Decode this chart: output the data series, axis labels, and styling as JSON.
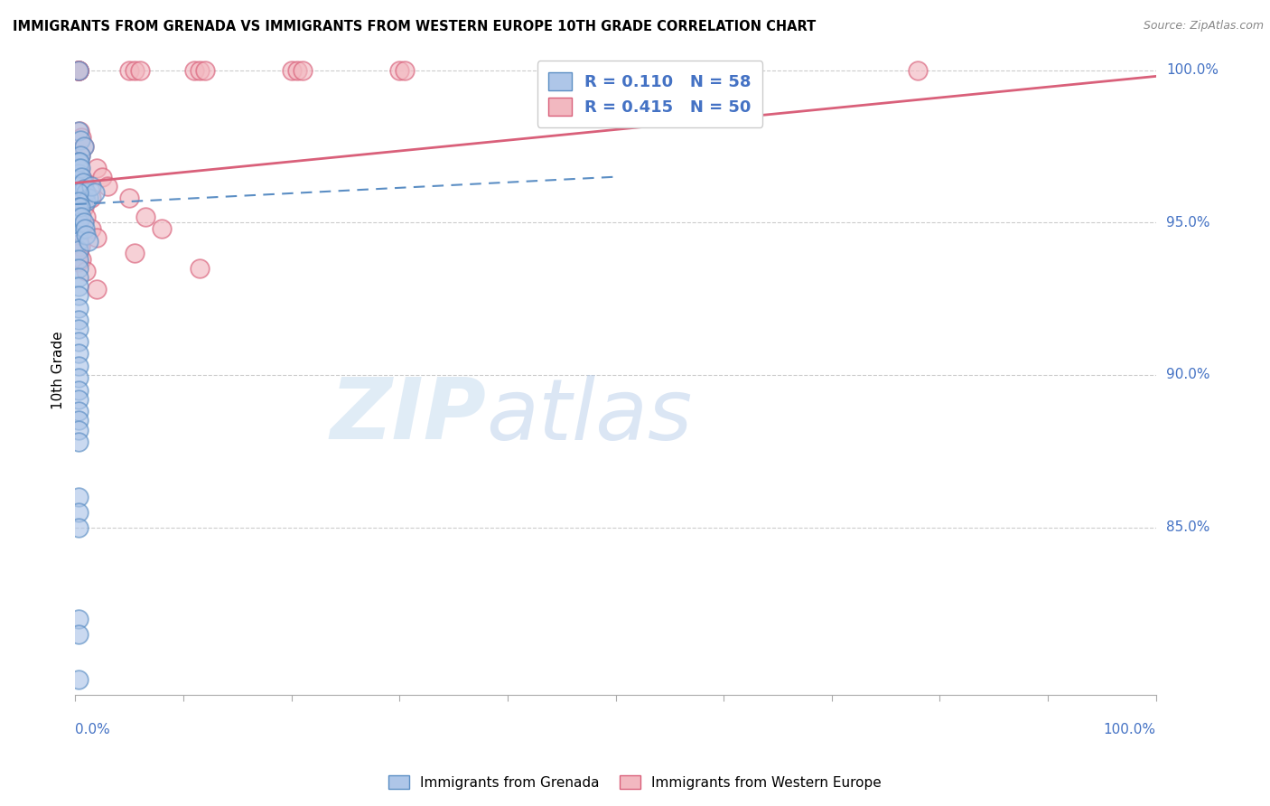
{
  "title": "IMMIGRANTS FROM GRENADA VS IMMIGRANTS FROM WESTERN EUROPE 10TH GRADE CORRELATION CHART",
  "source": "Source: ZipAtlas.com",
  "ylabel": "10th Grade",
  "yaxis_labels": [
    "100.0%",
    "95.0%",
    "90.0%",
    "85.0%"
  ],
  "yaxis_values": [
    1.0,
    0.95,
    0.9,
    0.85
  ],
  "xmin": 0.0,
  "xmax": 1.0,
  "ymin": 0.795,
  "ymax": 1.008,
  "legend_blue_r": "0.110",
  "legend_blue_n": "58",
  "legend_pink_r": "0.415",
  "legend_pink_n": "50",
  "blue_color": "#aec6e8",
  "blue_edge_color": "#5b8ec4",
  "pink_color": "#f2b8c0",
  "pink_edge_color": "#d9607a",
  "legend_label_blue": "Immigrants from Grenada",
  "legend_label_pink": "Immigrants from Western Europe",
  "blue_scatter": [
    [
      0.003,
      1.0
    ],
    [
      0.003,
      0.98
    ],
    [
      0.005,
      0.977
    ],
    [
      0.008,
      0.975
    ],
    [
      0.005,
      0.972
    ],
    [
      0.003,
      0.97
    ],
    [
      0.003,
      0.968
    ],
    [
      0.003,
      0.966
    ],
    [
      0.003,
      0.964
    ],
    [
      0.003,
      0.962
    ],
    [
      0.004,
      0.97
    ],
    [
      0.005,
      0.968
    ],
    [
      0.006,
      0.965
    ],
    [
      0.007,
      0.963
    ],
    [
      0.008,
      0.961
    ],
    [
      0.01,
      0.96
    ],
    [
      0.01,
      0.957
    ],
    [
      0.012,
      0.958
    ],
    [
      0.015,
      0.962
    ],
    [
      0.018,
      0.96
    ],
    [
      0.003,
      0.96
    ],
    [
      0.003,
      0.957
    ],
    [
      0.003,
      0.955
    ],
    [
      0.003,
      0.952
    ],
    [
      0.003,
      0.95
    ],
    [
      0.003,
      0.947
    ],
    [
      0.003,
      0.944
    ],
    [
      0.003,
      0.941
    ],
    [
      0.003,
      0.938
    ],
    [
      0.003,
      0.935
    ],
    [
      0.003,
      0.932
    ],
    [
      0.003,
      0.929
    ],
    [
      0.003,
      0.926
    ],
    [
      0.003,
      0.922
    ],
    [
      0.003,
      0.918
    ],
    [
      0.003,
      0.915
    ],
    [
      0.003,
      0.911
    ],
    [
      0.003,
      0.907
    ],
    [
      0.003,
      0.903
    ],
    [
      0.003,
      0.899
    ],
    [
      0.003,
      0.895
    ],
    [
      0.003,
      0.892
    ],
    [
      0.003,
      0.888
    ],
    [
      0.005,
      0.955
    ],
    [
      0.006,
      0.952
    ],
    [
      0.008,
      0.95
    ],
    [
      0.009,
      0.948
    ],
    [
      0.01,
      0.946
    ],
    [
      0.012,
      0.944
    ],
    [
      0.003,
      0.885
    ],
    [
      0.003,
      0.882
    ],
    [
      0.003,
      0.878
    ],
    [
      0.003,
      0.86
    ],
    [
      0.003,
      0.855
    ],
    [
      0.003,
      0.85
    ],
    [
      0.003,
      0.82
    ],
    [
      0.003,
      0.815
    ],
    [
      0.003,
      0.8
    ]
  ],
  "pink_scatter": [
    [
      0.003,
      1.0
    ],
    [
      0.003,
      1.0
    ],
    [
      0.003,
      1.0
    ],
    [
      0.003,
      1.0
    ],
    [
      0.003,
      1.0
    ],
    [
      0.05,
      1.0
    ],
    [
      0.055,
      1.0
    ],
    [
      0.06,
      1.0
    ],
    [
      0.11,
      1.0
    ],
    [
      0.115,
      1.0
    ],
    [
      0.12,
      1.0
    ],
    [
      0.2,
      1.0
    ],
    [
      0.205,
      1.0
    ],
    [
      0.21,
      1.0
    ],
    [
      0.3,
      1.0
    ],
    [
      0.305,
      1.0
    ],
    [
      0.78,
      1.0
    ],
    [
      0.004,
      0.98
    ],
    [
      0.006,
      0.978
    ],
    [
      0.008,
      0.975
    ],
    [
      0.005,
      0.972
    ],
    [
      0.003,
      0.97
    ],
    [
      0.004,
      0.967
    ],
    [
      0.006,
      0.965
    ],
    [
      0.008,
      0.963
    ],
    [
      0.01,
      0.96
    ],
    [
      0.015,
      0.958
    ],
    [
      0.02,
      0.968
    ],
    [
      0.025,
      0.965
    ],
    [
      0.03,
      0.962
    ],
    [
      0.05,
      0.958
    ],
    [
      0.065,
      0.952
    ],
    [
      0.08,
      0.948
    ],
    [
      0.003,
      0.96
    ],
    [
      0.003,
      0.957
    ],
    [
      0.005,
      0.955
    ],
    [
      0.005,
      0.952
    ],
    [
      0.008,
      0.955
    ],
    [
      0.01,
      0.952
    ],
    [
      0.015,
      0.948
    ],
    [
      0.02,
      0.945
    ],
    [
      0.055,
      0.94
    ],
    [
      0.115,
      0.935
    ],
    [
      0.003,
      0.943
    ],
    [
      0.003,
      0.94
    ],
    [
      0.003,
      0.937
    ],
    [
      0.005,
      0.942
    ],
    [
      0.006,
      0.938
    ],
    [
      0.01,
      0.934
    ],
    [
      0.02,
      0.928
    ]
  ],
  "blue_trendline_x": [
    0.0,
    0.5
  ],
  "blue_trendline_y": [
    0.956,
    0.965
  ],
  "pink_trendline_x": [
    0.0,
    1.0
  ],
  "pink_trendline_y": [
    0.963,
    0.998
  ]
}
